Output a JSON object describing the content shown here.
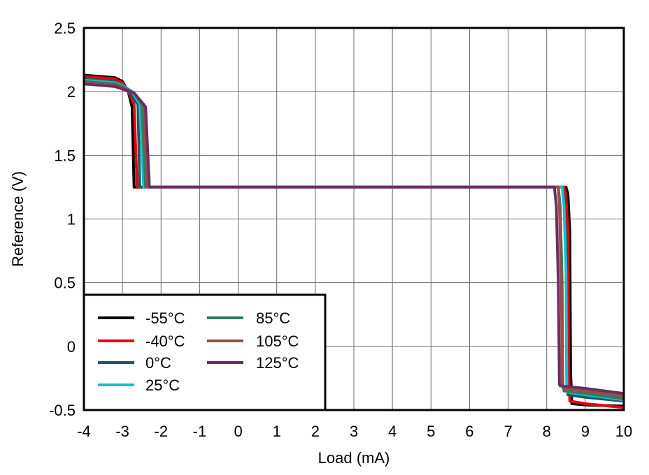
{
  "chart_data": {
    "type": "line",
    "title": "",
    "xlabel": "Load (mA)",
    "ylabel": "Reference (V)",
    "xlim": [
      -4,
      10
    ],
    "ylim": [
      -0.5,
      2.5
    ],
    "xticks": [
      -4,
      -3,
      -2,
      -1,
      0,
      1,
      2,
      3,
      4,
      5,
      6,
      7,
      8,
      9,
      10
    ],
    "yticks": [
      -0.5,
      0,
      0.5,
      1,
      1.5,
      2,
      2.5
    ],
    "xtick_labels": [
      "-4",
      "-3",
      "-2",
      "-1",
      "0",
      "1",
      "2",
      "3",
      "4",
      "5",
      "6",
      "7",
      "8",
      "9",
      "10"
    ],
    "ytick_labels": [
      "-0.5",
      "0",
      "0.5",
      "1",
      "1.5",
      "2",
      "2.5"
    ],
    "grid": true,
    "legend_position": "bottom-left",
    "series": [
      {
        "name": "-55°C",
        "color": "#000000",
        "points": [
          [
            -4,
            2.13
          ],
          [
            -3.2,
            2.11
          ],
          [
            -3.0,
            2.08
          ],
          [
            -2.85,
            2.0
          ],
          [
            -2.75,
            1.88
          ],
          [
            -2.7,
            1.25
          ],
          [
            8.5,
            1.25
          ],
          [
            8.55,
            1.2
          ],
          [
            8.6,
            0.9
          ],
          [
            8.62,
            -0.2
          ],
          [
            8.65,
            -0.45
          ],
          [
            9.0,
            -0.46
          ],
          [
            10,
            -0.47
          ]
        ]
      },
      {
        "name": "-40°C",
        "color": "#e8000b",
        "points": [
          [
            -4,
            2.12
          ],
          [
            -3.2,
            2.1
          ],
          [
            -3.0,
            2.07
          ],
          [
            -2.85,
            2.0
          ],
          [
            -2.7,
            1.9
          ],
          [
            -2.62,
            1.25
          ],
          [
            8.45,
            1.25
          ],
          [
            8.5,
            1.18
          ],
          [
            8.55,
            0.9
          ],
          [
            8.57,
            -0.2
          ],
          [
            8.6,
            -0.43
          ],
          [
            9.0,
            -0.45
          ],
          [
            10,
            -0.48
          ]
        ]
      },
      {
        "name": "0°C",
        "color": "#1b5a60",
        "points": [
          [
            -4,
            2.1
          ],
          [
            -3.2,
            2.08
          ],
          [
            -3.0,
            2.05
          ],
          [
            -2.8,
            1.98
          ],
          [
            -2.6,
            1.9
          ],
          [
            -2.55,
            1.25
          ],
          [
            8.4,
            1.25
          ],
          [
            8.45,
            1.15
          ],
          [
            8.5,
            0.8
          ],
          [
            8.52,
            -0.25
          ],
          [
            8.55,
            -0.38
          ],
          [
            9.0,
            -0.4
          ],
          [
            10,
            -0.43
          ]
        ]
      },
      {
        "name": "25°C",
        "color": "#17becf",
        "points": [
          [
            -4,
            2.09
          ],
          [
            -3.2,
            2.07
          ],
          [
            -3.0,
            2.05
          ],
          [
            -2.75,
            2.0
          ],
          [
            -2.55,
            1.9
          ],
          [
            -2.45,
            1.25
          ],
          [
            8.4,
            1.25
          ],
          [
            8.45,
            1.1
          ],
          [
            8.5,
            0.6
          ],
          [
            8.52,
            -0.3
          ],
          [
            8.55,
            -0.36
          ],
          [
            9.0,
            -0.38
          ],
          [
            10,
            -0.42
          ]
        ]
      },
      {
        "name": "85°C",
        "color": "#2e7d5b",
        "points": [
          [
            -4,
            2.08
          ],
          [
            -3.2,
            2.06
          ],
          [
            -3.0,
            2.04
          ],
          [
            -2.7,
            1.99
          ],
          [
            -2.5,
            1.9
          ],
          [
            -2.4,
            1.25
          ],
          [
            8.3,
            1.25
          ],
          [
            8.35,
            1.1
          ],
          [
            8.4,
            0.5
          ],
          [
            8.42,
            -0.3
          ],
          [
            8.45,
            -0.35
          ],
          [
            9.0,
            -0.37
          ],
          [
            10,
            -0.41
          ]
        ]
      },
      {
        "name": "105°C",
        "color": "#9b4a4a",
        "points": [
          [
            -4,
            2.07
          ],
          [
            -3.2,
            2.05
          ],
          [
            -3.0,
            2.03
          ],
          [
            -2.7,
            1.99
          ],
          [
            -2.45,
            1.9
          ],
          [
            -2.35,
            1.25
          ],
          [
            8.3,
            1.25
          ],
          [
            8.33,
            1.1
          ],
          [
            8.38,
            0.5
          ],
          [
            8.4,
            -0.3
          ],
          [
            8.43,
            -0.33
          ],
          [
            9.0,
            -0.35
          ],
          [
            10,
            -0.39
          ]
        ]
      },
      {
        "name": "125°C",
        "color": "#6b2d63",
        "points": [
          [
            -4,
            2.06
          ],
          [
            -3.2,
            2.04
          ],
          [
            -3.0,
            2.02
          ],
          [
            -2.7,
            1.99
          ],
          [
            -2.4,
            1.88
          ],
          [
            -2.3,
            1.25
          ],
          [
            8.2,
            1.25
          ],
          [
            8.25,
            1.1
          ],
          [
            8.3,
            0.5
          ],
          [
            8.33,
            -0.3
          ],
          [
            8.35,
            -0.31
          ],
          [
            9.0,
            -0.33
          ],
          [
            10,
            -0.37
          ]
        ]
      }
    ]
  }
}
